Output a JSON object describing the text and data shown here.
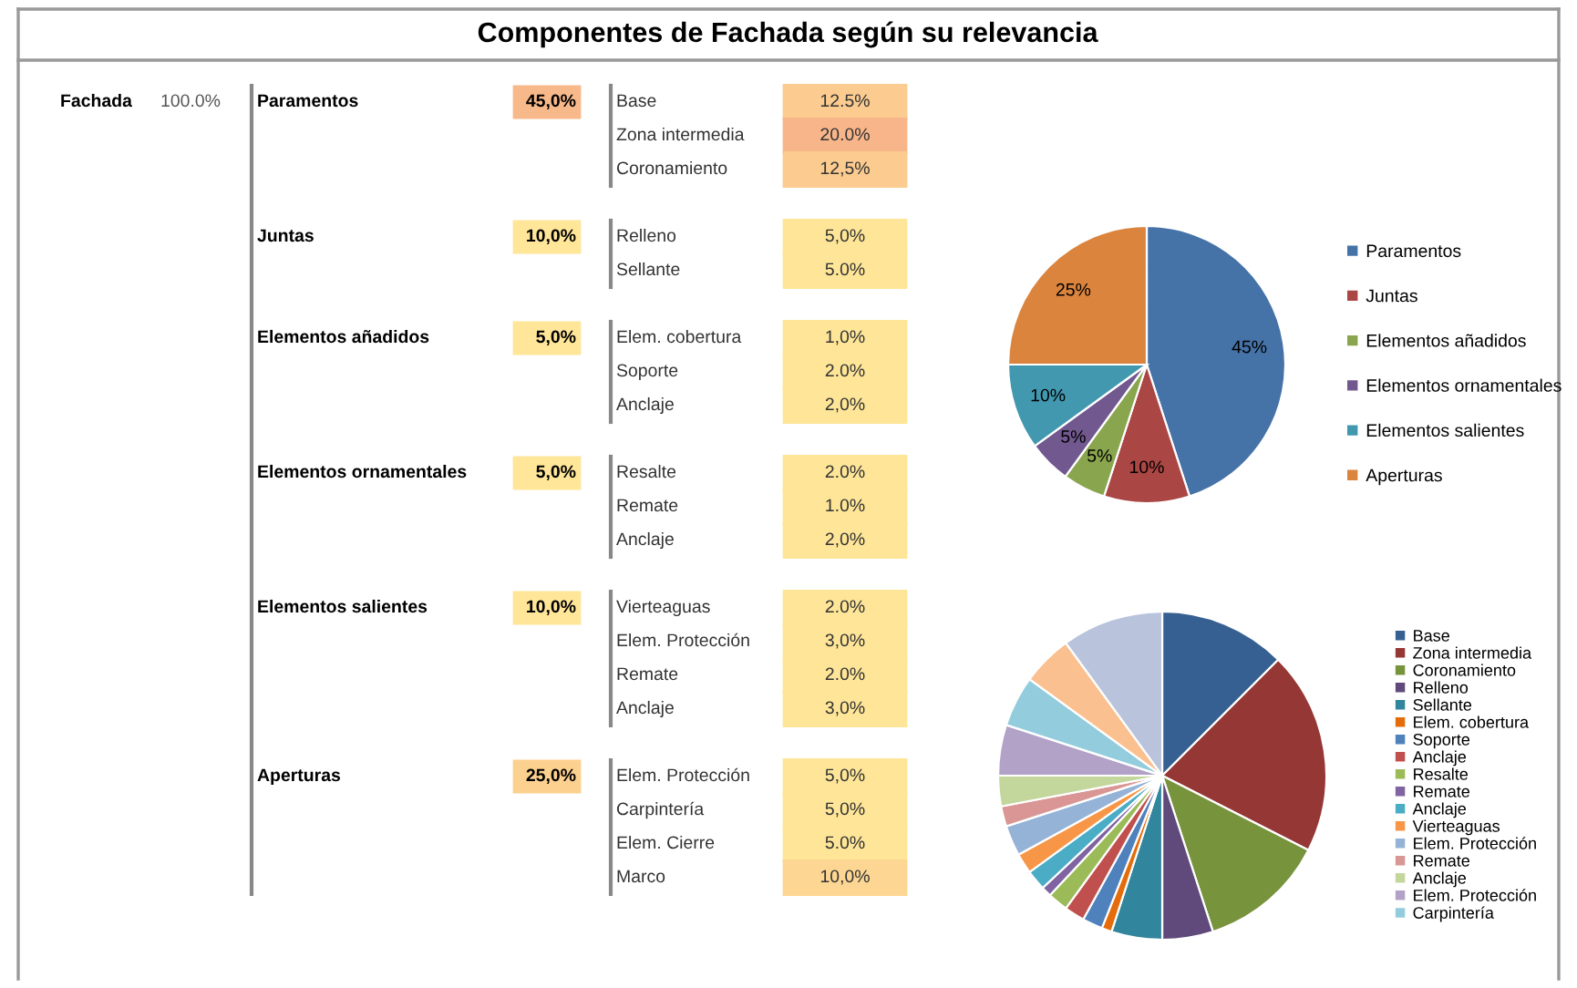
{
  "chart_data": [
    {
      "type": "other",
      "title": "Componentes de Fachada según su relevancia",
      "annotations": [
        "Fachada",
        "100.0%"
      ],
      "categories": [
        "Paramentos",
        "Juntas",
        "Elementos añadidos",
        "Elementos ornamentales",
        "Elementos salientes",
        "Aperturas"
      ],
      "values": [
        45,
        10,
        5,
        5,
        10,
        25
      ],
      "value_labels": [
        "45,0%",
        "10,0%",
        "5,0%",
        "5,0%",
        "10,0%",
        "25,0%"
      ],
      "colors": [
        "#f8b98a",
        "#ffe699",
        "#ffe699",
        "#ffe699",
        "#ffe699",
        "#fcd08e"
      ]
    },
    {
      "type": "other",
      "categories": [
        "Base",
        "Zona intermedia",
        "Coronamiento",
        "Relleno",
        "Sellante",
        "Elem. cobertura",
        "Soporte",
        "Anclaje",
        "Resalte",
        "Remate",
        "Anclaje",
        "Vierteaguas",
        "Elem. Protección",
        "Remate",
        "Anclaje",
        "Elem. Protección",
        "Carpintería",
        "Elem. Cierre",
        "Marco"
      ],
      "values": [
        12.5,
        20,
        12.5,
        5,
        5,
        1,
        2,
        2,
        2,
        1,
        2,
        2,
        3,
        2,
        3,
        5,
        5,
        5,
        10
      ],
      "value_labels": [
        "12.5%",
        "20.0%",
        "12,5%",
        "5,0%",
        "5.0%",
        "1,0%",
        "2.0%",
        "2,0%",
        "2.0%",
        "1.0%",
        "2,0%",
        "2.0%",
        "3,0%",
        "2.0%",
        "3,0%",
        "5,0%",
        "5,0%",
        "5.0%",
        "10,0%"
      ],
      "colors": [
        "#fbcb8f",
        "#f8b58a",
        "#fbcb8f",
        "#fee597",
        "#fee597",
        "#fee597",
        "#fee597",
        "#fee597",
        "#fee597",
        "#fee597",
        "#fee597",
        "#fee597",
        "#fee597",
        "#fee597",
        "#fee597",
        "#fee597",
        "#fee597",
        "#fee597",
        "#fcd692"
      ]
    },
    {
      "type": "pie",
      "categories": [
        "Paramentos",
        "Juntas",
        "Elementos añadidos",
        "Elementos ornamentales",
        "Elementos salientes",
        "Aperturas"
      ],
      "values": [
        45,
        10,
        5,
        5,
        10,
        25
      ],
      "colors": [
        "#4572a7",
        "#aa4643",
        "#89a54e",
        "#71588f",
        "#4198af",
        "#db843d"
      ],
      "value_labels": [
        "45%",
        "10%",
        "5%",
        "5%",
        "10%",
        "25%"
      ],
      "legend": "right"
    },
    {
      "type": "pie",
      "categories": [
        "Base",
        "Zona intermedia",
        "Coronamiento",
        "Relleno",
        "Sellante",
        "Elem. cobertura",
        "Soporte",
        "Anclaje",
        "Resalte",
        "Remate",
        "Anclaje",
        "Vierteaguas",
        "Elem. Protección",
        "Remate",
        "Anclaje",
        "Elem. Protección",
        "Carpintería",
        null,
        null
      ],
      "values": [
        12.5,
        20,
        12.5,
        5,
        5,
        1,
        2,
        2,
        2,
        1,
        2,
        2,
        3,
        2,
        3,
        5,
        5,
        5,
        10
      ],
      "colors": [
        "#376092",
        "#953735",
        "#77933c",
        "#604a7b",
        "#31859c",
        "#e46c0a",
        "#4f81bd",
        "#c0504d",
        "#9bbb59",
        "#8064a2",
        "#4bacc6",
        "#f79646",
        "#95b3d7",
        "#d99694",
        "#c3d69b",
        "#b3a2c7",
        "#93cddd",
        "#fac090",
        "#b9c4dc"
      ],
      "legend": "right"
    }
  ]
}
